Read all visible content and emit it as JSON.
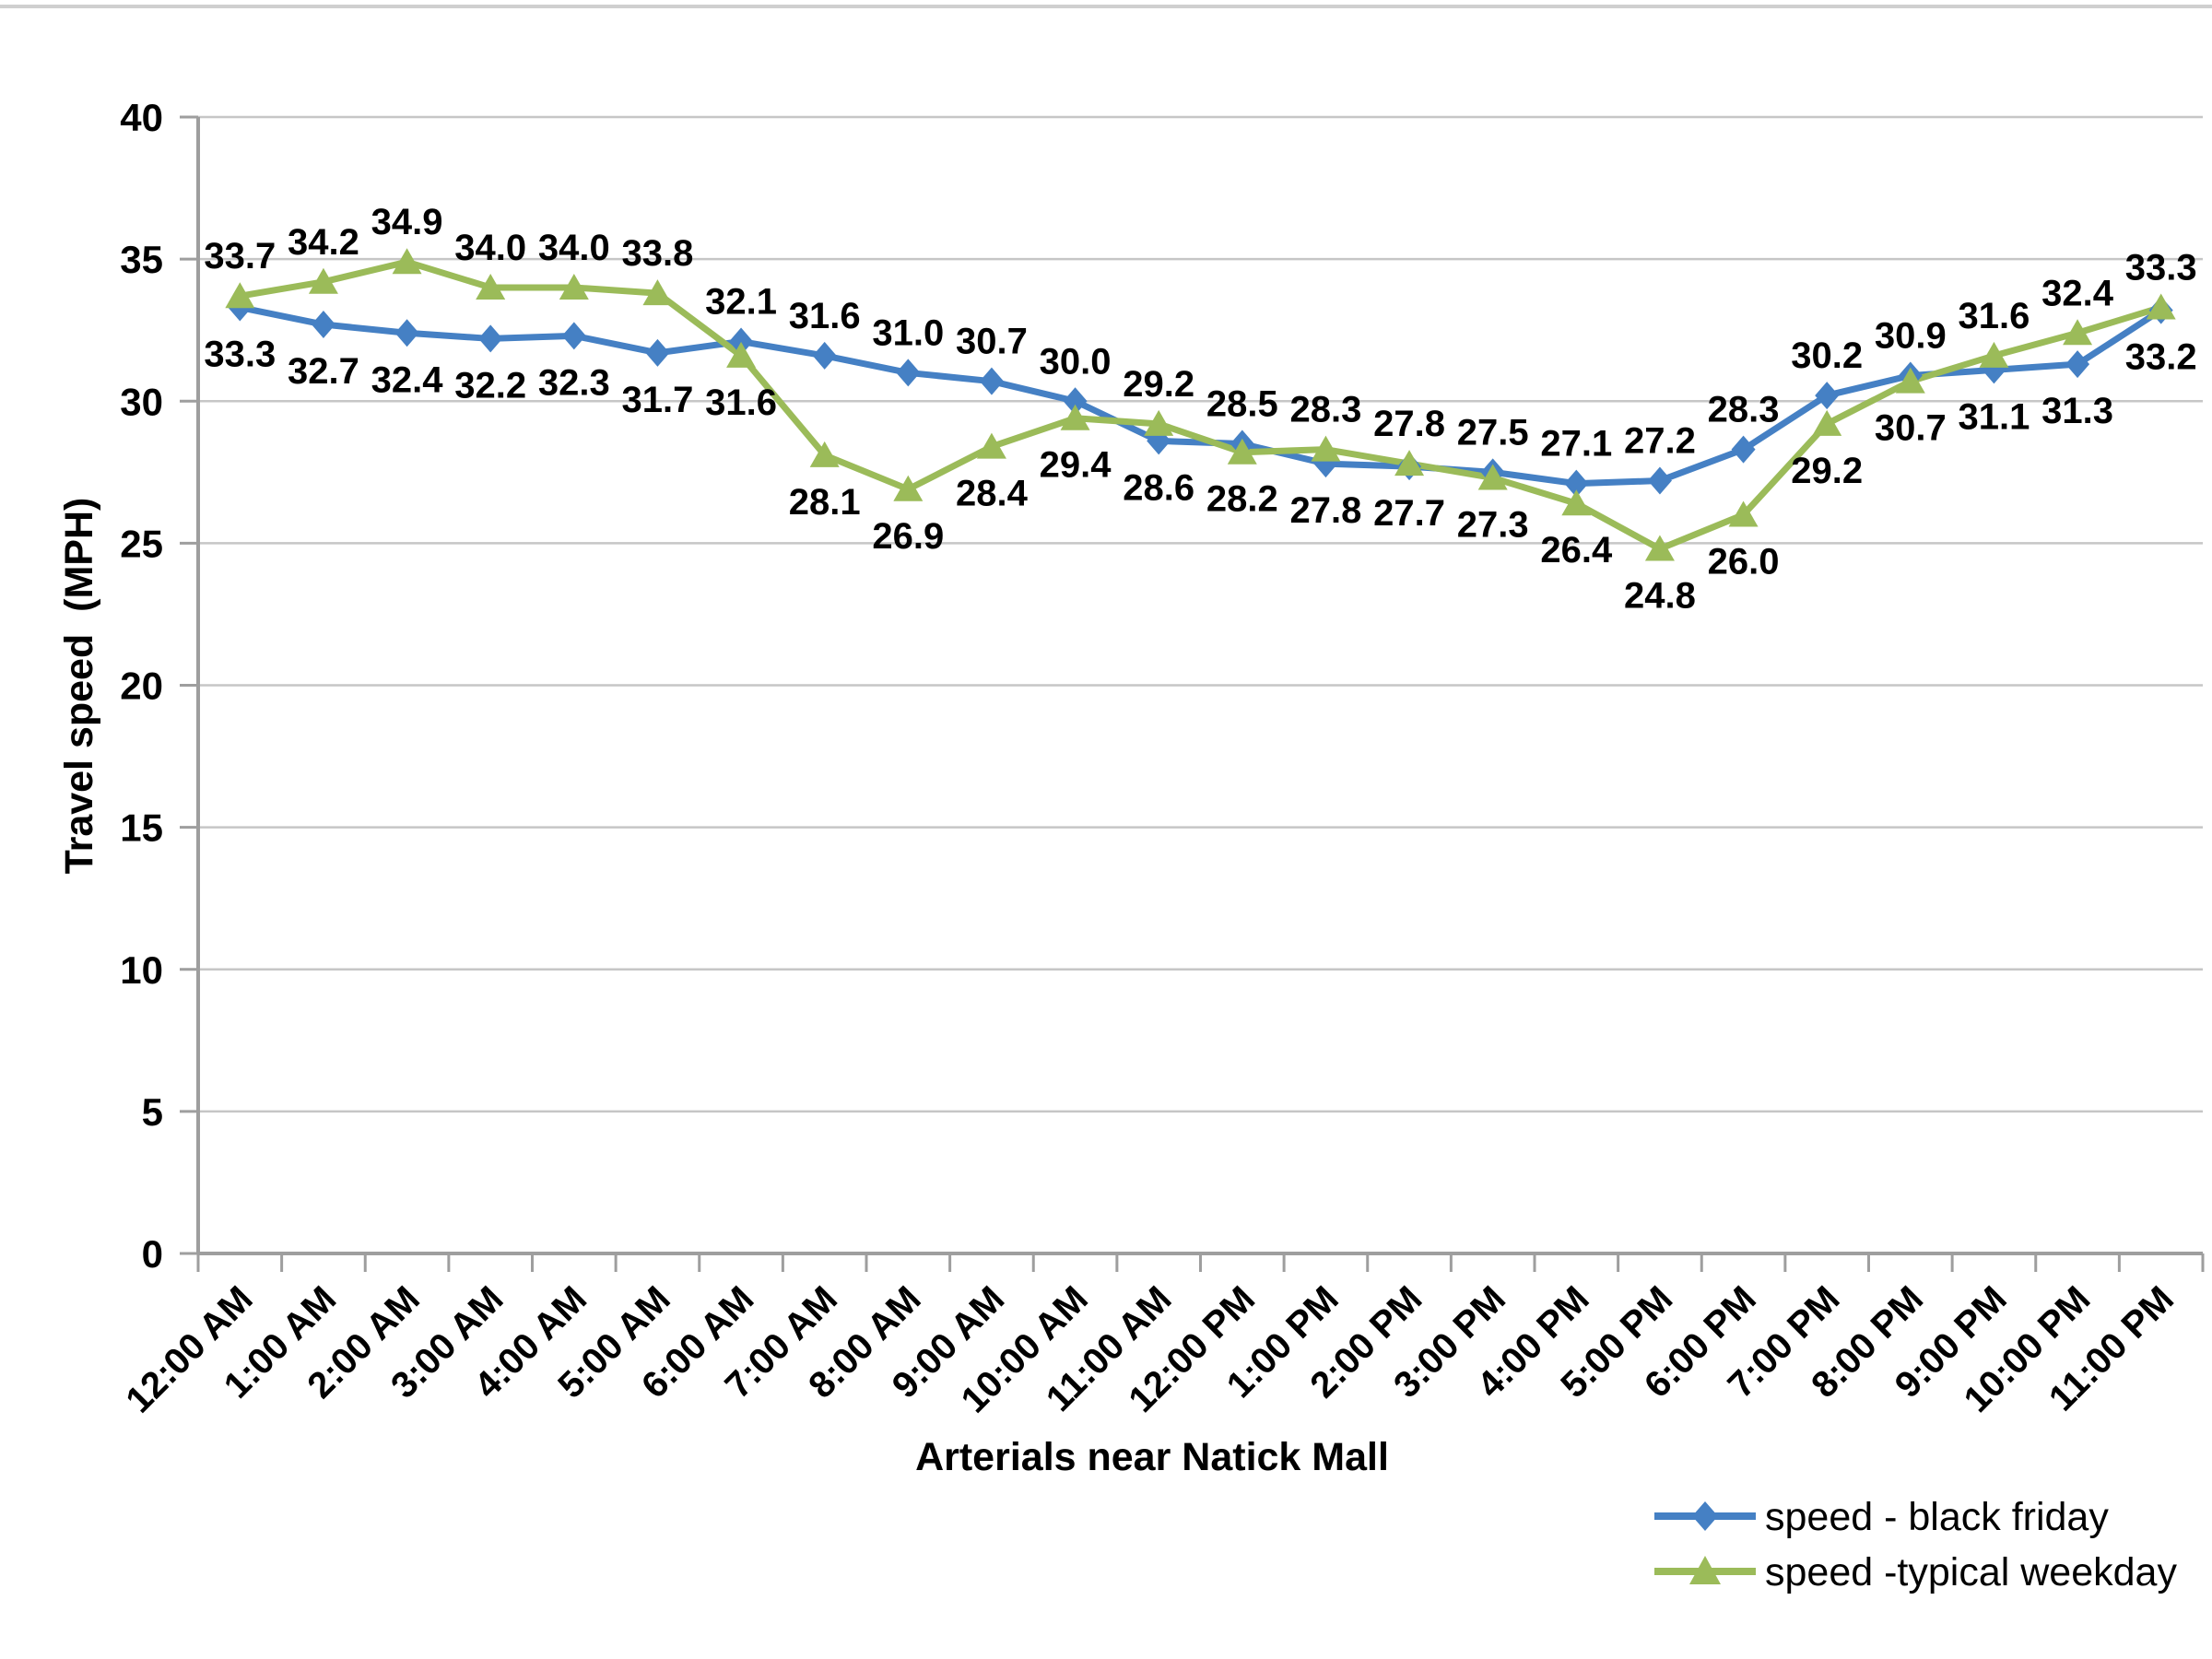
{
  "chart_data": {
    "type": "line",
    "title": "",
    "xlabel": "Arterials near Natick Mall",
    "ylabel": "Travel speed  (MPH)",
    "categories": [
      "12:00 AM",
      "1:00 AM",
      "2:00 AM",
      "3:00 AM",
      "4:00 AM",
      "5:00 AM",
      "6:00 AM",
      "7:00 AM",
      "8:00 AM",
      "9:00 AM",
      "10:00 AM",
      "11:00 AM",
      "12:00 PM",
      "1:00 PM",
      "2:00 PM",
      "3:00 PM",
      "4:00 PM",
      "5:00 PM",
      "6:00 PM",
      "7:00 PM",
      "8:00 PM",
      "9:00 PM",
      "10:00 PM",
      "11:00 PM"
    ],
    "series": [
      {
        "name": "speed - black friday",
        "marker": "diamond",
        "color": "#4580c4",
        "values": [
          33.3,
          32.7,
          32.4,
          32.2,
          32.3,
          31.7,
          32.1,
          31.6,
          31.0,
          30.7,
          30.0,
          28.6,
          28.5,
          27.8,
          27.7,
          27.5,
          27.1,
          27.2,
          28.3,
          30.2,
          30.9,
          31.1,
          31.3,
          33.2
        ]
      },
      {
        "name": "speed -typical weekday",
        "marker": "triangle",
        "color": "#9bbb59",
        "values": [
          33.7,
          34.2,
          34.9,
          34.0,
          34.0,
          33.8,
          31.6,
          28.1,
          26.9,
          28.4,
          29.4,
          29.2,
          28.2,
          28.3,
          27.8,
          27.3,
          26.4,
          24.8,
          26.0,
          29.2,
          30.7,
          31.6,
          32.4,
          33.3
        ]
      }
    ],
    "ylim": [
      0,
      40
    ],
    "y_ticks": [
      0,
      5,
      10,
      15,
      20,
      25,
      30,
      35,
      40
    ],
    "grid": "horizontal",
    "legend_position": "bottom-right",
    "data_labels": true,
    "data_label_decimals": 1
  },
  "colors": {
    "background": "#ffffff",
    "gridline": "#c6c6c6",
    "axis": "#9e9e9e",
    "text": "#000000",
    "top_edge": "#cfcfcf"
  }
}
